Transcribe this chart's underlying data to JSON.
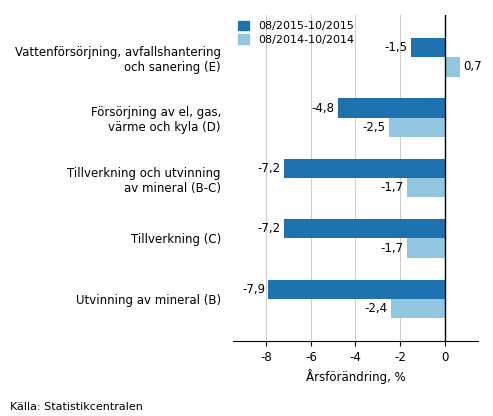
{
  "categories": [
    "Vattenförsörjning, avfallshantering\noch sanering (E)",
    "Försörjning av el, gas,\nvärme och kyla (D)",
    "Tillverkning och utvinning\nav mineral (B-C)",
    "Tillverkning (C)",
    "Utvinning av mineral (B)"
  ],
  "series1_values": [
    -1.5,
    -4.8,
    -7.2,
    -7.2,
    -7.9
  ],
  "series2_values": [
    0.7,
    -2.5,
    -1.7,
    -1.7,
    -2.4
  ],
  "series1_label": "08/2015-10/2015",
  "series2_label": "08/2014-10/2014",
  "series1_color": "#1F72B0",
  "series2_color": "#92C5E0",
  "xlabel": "Årsförändring, %",
  "xlim": [
    -9.5,
    1.5
  ],
  "xticks": [
    -8,
    -6,
    -4,
    -2,
    0
  ],
  "source": "Källa: Statistikcentralen",
  "bar_height": 0.32,
  "background_color": "#ffffff",
  "label_fontsize": 8.0,
  "tick_fontsize": 8.5,
  "annotation_fontsize": 8.5
}
